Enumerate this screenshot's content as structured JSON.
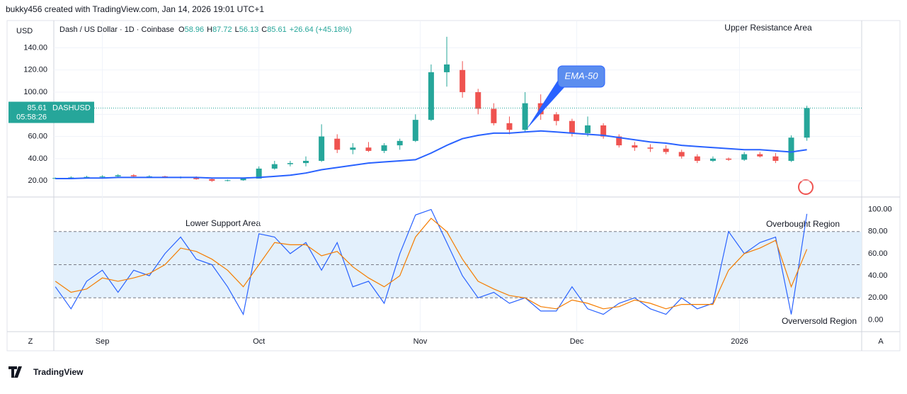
{
  "header": {
    "watermark": "bukky456 created with TradingView.com, Jan 14, 2026 19:01 UTC+1",
    "brand": "TradingView",
    "left_corner": "Z",
    "right_corner": "A"
  },
  "chart_data": [
    {
      "type": "candlestick",
      "title": "Dash / US Dollar · 1D · Coinbase",
      "currency": "USD",
      "symbol": "DASHUSD",
      "countdown": "05:58:26",
      "change": "+26.64 (+45.18%)",
      "ohlc_labels": [
        "O",
        "H",
        "L",
        "C"
      ],
      "categories": [
        null,
        null,
        null,
        null,
        null,
        null,
        null,
        null,
        null,
        null,
        null,
        null,
        null,
        null,
        null,
        null,
        null,
        null,
        null,
        null,
        null,
        null,
        null,
        null,
        null,
        null,
        null,
        null,
        null,
        null,
        null,
        null,
        null,
        null,
        null,
        null,
        null,
        null,
        null,
        null,
        null,
        null,
        null,
        null,
        null,
        null,
        null,
        null,
        null
      ],
      "open": [
        22,
        22.5,
        23,
        23.5,
        24,
        25,
        24,
        24,
        23,
        23.5,
        21.5,
        20,
        20.5,
        22,
        31,
        35,
        36,
        38,
        58,
        48,
        50,
        47,
        52,
        56,
        75,
        118,
        120,
        100,
        85,
        72,
        66,
        90,
        80,
        74,
        63,
        70,
        60,
        52,
        50,
        49,
        46,
        42,
        38,
        40,
        39,
        44,
        42,
        38,
        58.96
      ],
      "high": [
        23,
        24,
        24.5,
        25,
        26,
        26,
        25,
        24.5,
        24,
        24,
        22,
        21,
        23,
        33,
        38,
        38,
        42,
        71,
        62,
        54,
        55,
        54,
        58,
        80,
        125,
        150,
        128,
        103,
        90,
        78,
        100,
        98,
        82,
        76,
        78,
        72,
        62,
        55,
        53,
        52,
        48,
        44,
        42,
        41,
        46,
        46,
        45,
        61,
        87.72
      ],
      "low": [
        21.5,
        22,
        22.5,
        23,
        23.5,
        23.5,
        23,
        22.5,
        22,
        21,
        19,
        19.5,
        20,
        22,
        30,
        33,
        33,
        37,
        45,
        44,
        46,
        45,
        48,
        55,
        74,
        105,
        95,
        80,
        70,
        62,
        64,
        75,
        70,
        60,
        60,
        58,
        50,
        47,
        46,
        44,
        40,
        36,
        37,
        38,
        38,
        41,
        36,
        37,
        56.13
      ],
      "close": [
        22.5,
        23,
        23.5,
        24,
        25,
        24,
        24,
        23,
        23.5,
        21.5,
        20,
        20.5,
        22,
        31,
        35,
        36,
        38,
        60,
        48,
        50,
        47,
        52,
        56,
        75,
        118,
        125,
        100,
        85,
        72,
        66,
        90,
        80,
        74,
        63,
        70,
        60,
        52,
        50,
        49,
        46,
        42,
        38,
        40,
        39,
        44,
        42,
        38,
        58.96,
        85.61
      ],
      "up_color": "#26a69a",
      "down_color": "#ef5350",
      "series": [
        {
          "name": "EMA-50",
          "color": "#2962ff",
          "values": [
            22,
            22,
            22.5,
            22.5,
            23,
            23,
            23,
            23,
            23,
            23,
            22.5,
            22.5,
            22.5,
            23,
            24,
            25,
            27,
            30,
            32,
            34,
            36,
            37,
            38,
            39,
            45,
            52,
            58,
            61,
            63,
            63,
            64,
            65,
            64,
            63,
            62,
            61,
            59,
            57,
            55,
            54,
            52,
            51,
            50,
            49,
            48,
            48,
            47,
            46,
            48
          ]
        }
      ],
      "annotations": [
        "Upper Resistance Area"
      ],
      "xlim": [
        -0.1,
        51.5
      ],
      "xticks": [
        {
          "value": 3,
          "label": "Sep"
        },
        {
          "value": 13,
          "label": "Oct"
        },
        {
          "value": 23.3,
          "label": "Nov"
        },
        {
          "value": 33.3,
          "label": "Dec"
        },
        {
          "value": 43.7,
          "label": "2026"
        }
      ],
      "ylim": [
        6,
        164
      ],
      "yticks": [
        {
          "value": 20,
          "label": "20.00"
        },
        {
          "value": 40,
          "label": "40.00"
        },
        {
          "value": 60,
          "label": "60.00"
        },
        {
          "value": 80,
          "label": "80.00"
        },
        {
          "value": 100,
          "label": "100.00"
        },
        {
          "value": 120,
          "label": "120.00"
        },
        {
          "value": 140,
          "label": "140.00"
        }
      ],
      "grid": true
    },
    {
      "type": "line",
      "series": [
        {
          "color": "#2962ff",
          "values": [
            30,
            10,
            35,
            45,
            25,
            45,
            40,
            60,
            75,
            55,
            50,
            30,
            5,
            78,
            75,
            60,
            70,
            45,
            70,
            30,
            35,
            15,
            60,
            95,
            100,
            70,
            40,
            20,
            25,
            15,
            20,
            8,
            8,
            30,
            10,
            5,
            15,
            20,
            10,
            5,
            20,
            10,
            15,
            80,
            60,
            70,
            75,
            5,
            96
          ]
        },
        {
          "color": "#f57c00",
          "values": [
            35,
            25,
            28,
            38,
            35,
            38,
            42,
            50,
            65,
            62,
            55,
            45,
            30,
            50,
            70,
            68,
            68,
            58,
            62,
            48,
            38,
            30,
            40,
            75,
            92,
            80,
            55,
            35,
            28,
            22,
            20,
            12,
            10,
            18,
            15,
            10,
            12,
            18,
            15,
            10,
            14,
            14,
            14,
            45,
            60,
            65,
            72,
            30,
            64
          ]
        }
      ],
      "band": [
        20,
        80
      ],
      "levels": [
        20,
        50,
        80
      ],
      "band_color": "#e3f0fc",
      "annotations": [
        "Lower Support Area",
        "Overbought Region",
        "Overversold Region"
      ],
      "xlim": [
        -0.1,
        51.5
      ],
      "ylim": [
        -10,
        110
      ],
      "yticks": [
        {
          "value": 0,
          "label": "0.00"
        },
        {
          "value": 20,
          "label": "20.00"
        },
        {
          "value": 40,
          "label": "40.00"
        },
        {
          "value": 60,
          "label": "60.00"
        },
        {
          "value": 80,
          "label": "80.00"
        },
        {
          "value": 100,
          "label": "100.00"
        }
      ]
    }
  ]
}
